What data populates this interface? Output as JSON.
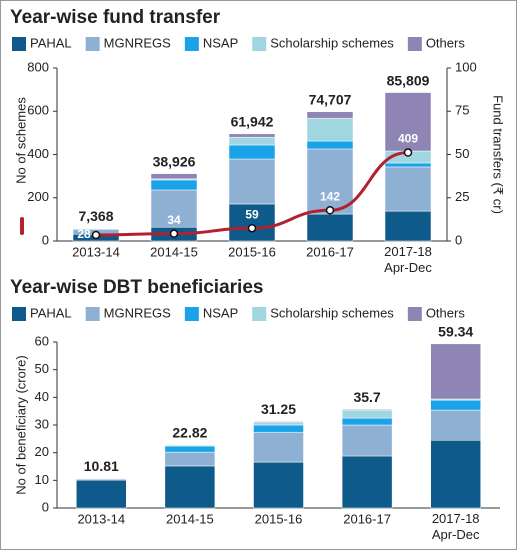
{
  "chart_data": [
    {
      "type": "bar",
      "stacked": true,
      "title": "Year-wise fund transfer",
      "categories": [
        "2013-14",
        "2014-15",
        "2015-16",
        "2016-17",
        "2017-18 Apr-Dec"
      ],
      "ylabel": "No of schemes",
      "ylim": [
        0,
        800
      ],
      "yticks": [
        0,
        200,
        400,
        600,
        800
      ],
      "y2label": "Fund transfers (₹ cr)",
      "y2lim": [
        0,
        100000
      ],
      "y2ticks": [
        0,
        {
          "value": 25000,
          "label": "25"
        },
        {
          "value": 50000,
          "label": "50"
        },
        {
          "value": 75000,
          "label": "75"
        },
        {
          "value": 100000,
          "label": "100"
        }
      ],
      "series": [
        {
          "name": "PAHAL",
          "color": "#0e5a8a",
          "axis": "y2",
          "values": [
            3900,
            8000,
            21400,
            15600,
            17300
          ]
        },
        {
          "name": "MGNREGS",
          "color": "#8eb0d3",
          "axis": "y2",
          "values": [
            2800,
            21500,
            26000,
            37600,
            25500
          ]
        },
        {
          "name": "NSAP",
          "color": "#1aa3e8",
          "axis": "y2",
          "values": [
            400,
            5800,
            8100,
            4600,
            2300
          ]
        },
        {
          "name": "Scholarship schemes",
          "color": "#9fd6e0",
          "axis": "y2",
          "values": [
            200,
            600,
            4500,
            13200,
            6900
          ]
        },
        {
          "name": "Others",
          "color": "#8f85b5",
          "axis": "y2",
          "values": [
            68,
            3026,
            1942,
            3707,
            33809
          ]
        }
      ],
      "line": {
        "color": "#b5202e",
        "axis": "y",
        "values": [
          28,
          34,
          59,
          142,
          409
        ]
      },
      "totals": [
        7368,
        38926,
        61942,
        74707,
        85809
      ],
      "total_labels": [
        "7,368",
        "38,926",
        "61,942",
        "74,707",
        "85,809"
      ]
    },
    {
      "type": "bar",
      "stacked": true,
      "title": "Year-wise DBT beneficiaries",
      "categories": [
        "2013-14",
        "2014-15",
        "2015-16",
        "2016-17",
        "2017-18 Apr-Dec"
      ],
      "ylabel": "No of beneficiary (crore)",
      "ylim": [
        0,
        60
      ],
      "yticks": [
        0,
        10,
        20,
        30,
        40,
        50,
        60
      ],
      "series": [
        {
          "name": "PAHAL",
          "color": "#0e5a8a",
          "values": [
            10.1,
            15.2,
            16.6,
            18.8,
            24.5
          ]
        },
        {
          "name": "MGNREGS",
          "color": "#8eb0d3",
          "values": [
            0.4,
            5,
            10.8,
            11.2,
            10.9
          ]
        },
        {
          "name": "NSAP",
          "color": "#1aa3e8",
          "values": [
            0.2,
            2.2,
            2.6,
            2.5,
            3.6
          ]
        },
        {
          "name": "Scholarship schemes",
          "color": "#9fd6e0",
          "values": [
            0.1,
            0.3,
            0.9,
            2.9,
            0.4
          ]
        },
        {
          "name": "Others",
          "color": "#8f85b5",
          "values": [
            0.01,
            0.12,
            0.35,
            0.3,
            19.94
          ]
        }
      ],
      "totals": [
        10.81,
        22.82,
        31.25,
        35.7,
        59.34
      ]
    }
  ]
}
